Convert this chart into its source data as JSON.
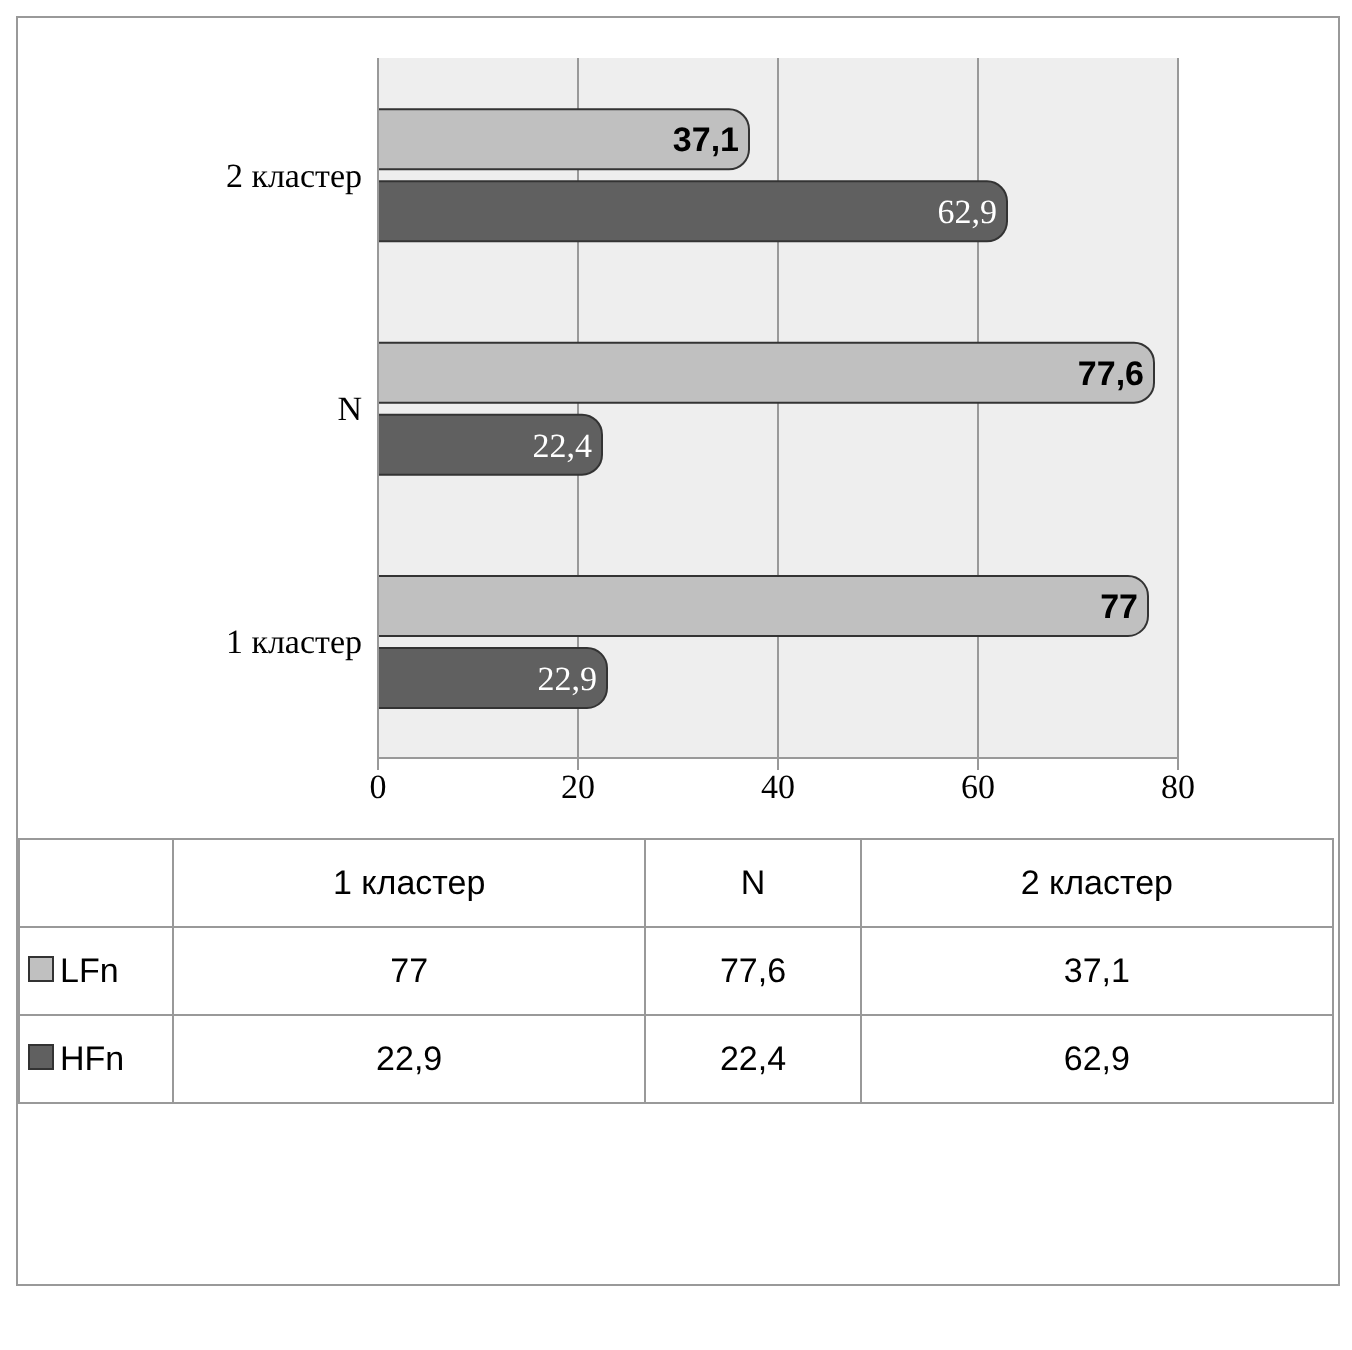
{
  "chart_data": {
    "type": "bar",
    "orientation": "horizontal",
    "categories": [
      "2 кластер",
      "N",
      "1 кластер"
    ],
    "series": [
      {
        "name": "LFn",
        "color": "#c0c0c0",
        "values": [
          37.1,
          77.6,
          77
        ],
        "value_labels": [
          "37,1",
          "77,6",
          "77"
        ]
      },
      {
        "name": "HFn",
        "color": "#606060",
        "values": [
          62.9,
          22.4,
          22.9
        ],
        "value_labels": [
          "62,9",
          "22,4",
          "22,9"
        ]
      }
    ],
    "xlim": [
      0,
      80
    ],
    "xticks": [
      0,
      20,
      40,
      60,
      80
    ],
    "grid": "x",
    "legend": "bottom"
  }
}
